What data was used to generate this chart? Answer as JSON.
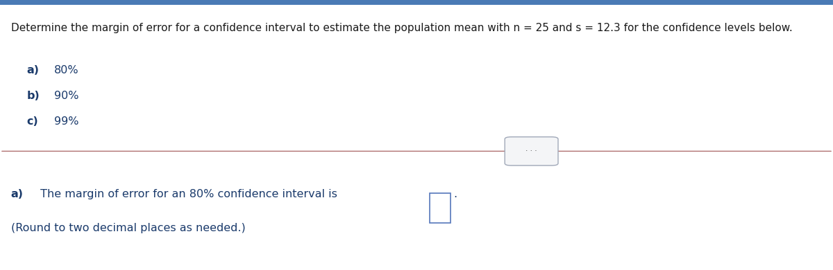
{
  "title_text": "Determine the margin of error for a confidence interval to estimate the population mean with n = 25 and s = 12.3 for the confidence levels below.",
  "items": [
    {
      "label": "a)",
      "value": "80%"
    },
    {
      "label": "b)",
      "value": "90%"
    },
    {
      "label": "c)",
      "value": "99%"
    }
  ],
  "answer_line1_bold": "a)",
  "answer_line1_text": " The margin of error for an 80% confidence interval is",
  "answer_line2": "(Round to two decimal places as needed.)",
  "bg_color": "#ffffff",
  "title_color": "#1a1a1a",
  "label_bold_color": "#1a3a6b",
  "label_text_color": "#1a3a6b",
  "answer_text_color": "#1a3a6b",
  "divider_color": "#b07070",
  "dots_box_color": "#a0a8b8",
  "title_fontsize": 11.0,
  "body_fontsize": 11.5,
  "answer_fontsize": 11.5,
  "top_bar_color": "#4a7ab5",
  "top_bar_height": 0.018
}
